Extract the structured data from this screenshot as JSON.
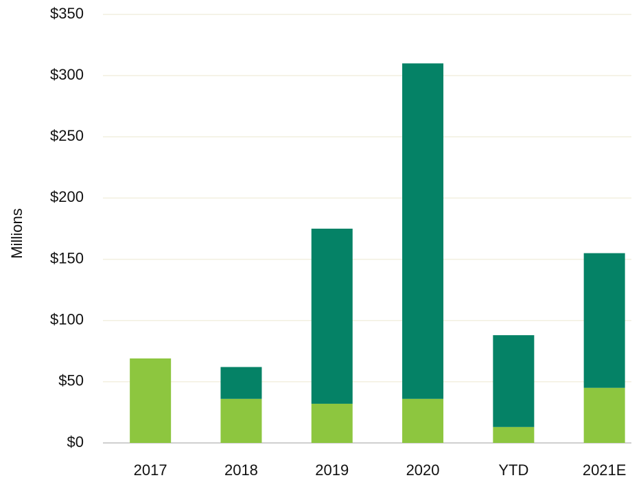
{
  "chart_data": {
    "type": "stacked_bar",
    "ylabel": "Millions",
    "categories": [
      "2017",
      "2018",
      "2019",
      "2020",
      "YTD",
      "2021E"
    ],
    "series": [
      {
        "color": "#8dc63f",
        "values": [
          69,
          36,
          32,
          36,
          13,
          45
        ]
      },
      {
        "color": "#058266",
        "values": [
          0,
          26,
          143,
          274,
          75,
          110
        ]
      }
    ],
    "ylim": [
      0,
      350
    ],
    "yticks": [
      {
        "value": 0,
        "label": "$0"
      },
      {
        "value": 50,
        "label": "$50"
      },
      {
        "value": 100,
        "label": "$100"
      },
      {
        "value": 150,
        "label": "$150"
      },
      {
        "value": 200,
        "label": "$200"
      },
      {
        "value": 250,
        "label": "$250"
      },
      {
        "value": 300,
        "label": "$300"
      },
      {
        "value": 350,
        "label": "$350"
      }
    ],
    "grid": true
  }
}
